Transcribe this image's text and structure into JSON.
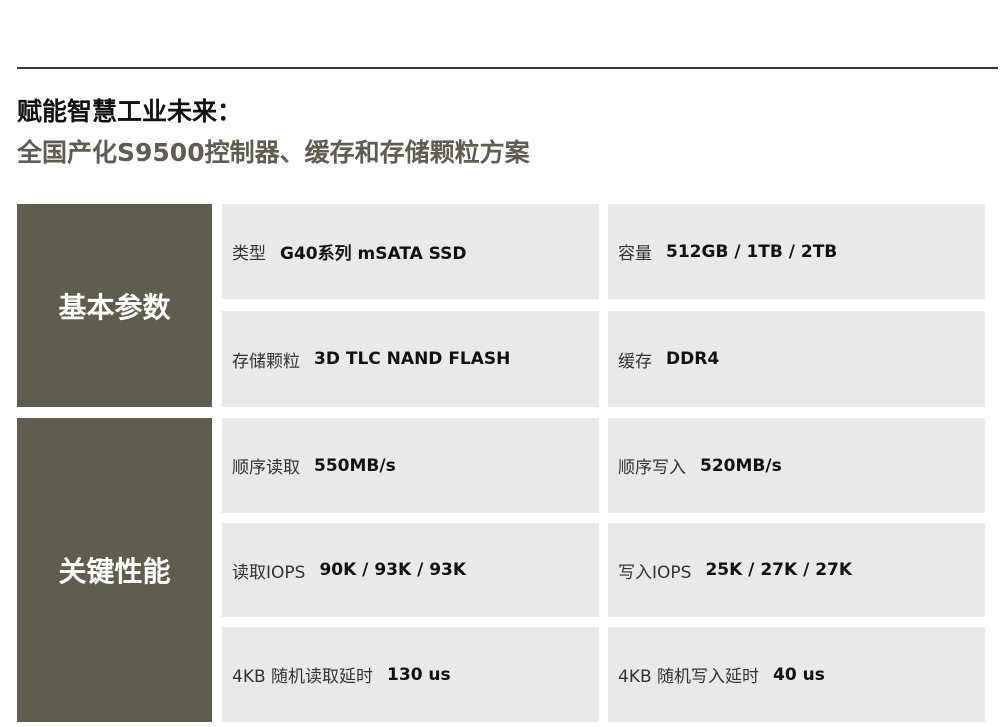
{
  "heading": {
    "line1": "赋能智慧工业未来：",
    "line2": "全国产化S9500控制器、缓存和存储颗粒方案"
  },
  "sections": [
    {
      "title": "基本参数",
      "rows": [
        [
          {
            "label": "类型",
            "value": "G40系列 mSATA SSD"
          },
          {
            "label": "容量",
            "value": "512GB / 1TB / 2TB"
          }
        ],
        [
          {
            "label": "存储颗粒",
            "value": "3D TLC NAND FLASH"
          },
          {
            "label": "缓存",
            "value": "DDR4"
          }
        ]
      ]
    },
    {
      "title": "关键性能",
      "rows": [
        [
          {
            "label": "顺序读取",
            "value": "550MB/s"
          },
          {
            "label": "顺序写入",
            "value": "520MB/s"
          }
        ],
        [
          {
            "label": "读取IOPS",
            "value": "90K / 93K / 93K"
          },
          {
            "label": "写入IOPS",
            "value": "25K / 27K / 27K"
          }
        ],
        [
          {
            "label": "4KB 随机读取延时",
            "value": "130 us"
          },
          {
            "label": "4KB 随机写入延时",
            "value": "40 us"
          }
        ]
      ]
    }
  ],
  "colors": {
    "accent": "#5f5d4d",
    "cell": "#e9e9e9",
    "subtitle": "#5f5e4e"
  }
}
